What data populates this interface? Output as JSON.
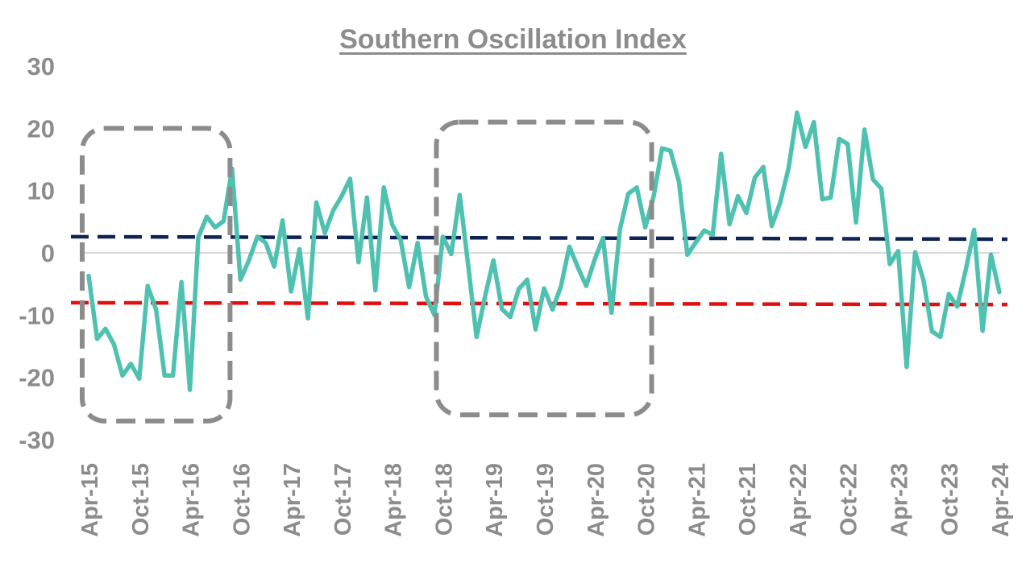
{
  "chart_data": {
    "type": "line",
    "title": "Southern Oscillation Index",
    "xlabel": "",
    "ylabel": "",
    "ylim": [
      -30,
      30
    ],
    "yticks": [
      30,
      20,
      10,
      0,
      -10,
      -20,
      -30
    ],
    "x_tick_labels": [
      "Apr-15",
      "Oct-15",
      "Apr-16",
      "Oct-16",
      "Apr-17",
      "Oct-17",
      "Apr-18",
      "Oct-18",
      "Apr-19",
      "Oct-19",
      "Apr-20",
      "Oct-20",
      "Apr-21",
      "Oct-21",
      "Apr-22",
      "Oct-22",
      "Apr-23",
      "Oct-23",
      "Apr-24"
    ],
    "x_range": [
      "Apr-15",
      "Apr-24"
    ],
    "grid": false,
    "zero_line": true,
    "series": [
      {
        "color": "#4fc1b0",
        "values": [
          -3.7,
          -13.8,
          -12.2,
          -14.7,
          -19.7,
          -17.8,
          -20.2,
          -5.3,
          -9.1,
          -19.7,
          -19.7,
          -4.7,
          -22.0,
          2.5,
          5.8,
          4.1,
          5.1,
          13.5,
          -4.3,
          -1.2,
          2.6,
          1.6,
          -2.2,
          5.2,
          -6.2,
          0.6,
          -10.5,
          8.1,
          3.2,
          6.8,
          9.1,
          11.9,
          -1.5,
          8.9,
          -6.0,
          10.5,
          4.5,
          2.1,
          -5.5,
          1.6,
          -7.0,
          -10.0,
          2.6,
          -0.2,
          9.3,
          -1.9,
          -13.5,
          -7.0,
          -1.2,
          -9.0,
          -10.3,
          -5.8,
          -4.3,
          -12.3,
          -5.7,
          -9.1,
          -5.4,
          1.0,
          -2.3,
          -5.3,
          -1.1,
          2.4,
          -9.6,
          3.8,
          9.5,
          10.5,
          4.1,
          9.1,
          16.8,
          16.4,
          11.4,
          -0.3,
          1.7,
          3.6,
          2.9,
          15.9,
          4.6,
          9.1,
          6.4,
          12.1,
          13.8,
          4.3,
          8.1,
          13.6,
          22.5,
          17.0,
          21.0,
          8.6,
          8.9,
          18.3,
          17.5,
          4.9,
          19.8,
          11.8,
          10.3,
          -1.8,
          0.3,
          -18.3,
          0.1,
          -4.4,
          -12.6,
          -13.5,
          -6.6,
          -8.6,
          -2.8,
          3.7,
          -12.5,
          -0.3,
          -6.3
        ]
      }
    ],
    "reference_lines": [
      {
        "color": "#0f2454",
        "style": "dashed",
        "y_start": 2.6,
        "y_end": 2.2
      },
      {
        "color": "#e01010",
        "style": "dashed",
        "y_start": -8.0,
        "y_end": -8.3
      }
    ],
    "highlight_boxes": [
      {
        "color": "#8c8c8c",
        "style": "dashed",
        "x_start": "Apr-15",
        "x_end": "Aug-16",
        "y_top": 20,
        "y_bottom": -27
      },
      {
        "color": "#8c8c8c",
        "style": "dashed",
        "x_start": "Oct-18",
        "x_end": "Oct-20",
        "y_top": 21,
        "y_bottom": -26
      }
    ]
  }
}
